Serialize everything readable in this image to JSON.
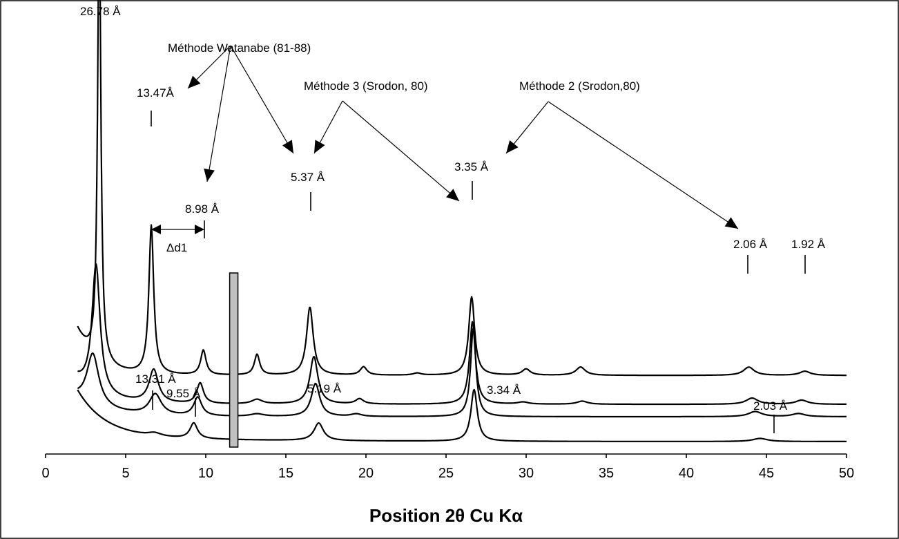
{
  "chart_data": {
    "type": "line",
    "xlabel": "Position 2θ Cu Kα",
    "xlim": [
      0,
      50
    ],
    "xticks": [
      0,
      5,
      10,
      15,
      20,
      25,
      30,
      35,
      40,
      45,
      50
    ],
    "grid": false,
    "series": [
      {
        "x_start": 2,
        "baseline": 0.32,
        "background": [
          {
            "height": 0.22,
            "decay": 1.2
          }
        ],
        "peaks": [
          {
            "x": 3.35,
            "height": 2.2,
            "width": 0.12
          },
          {
            "x": 6.6,
            "height": 0.72,
            "width": 0.18
          },
          {
            "x": 9.85,
            "height": 0.12,
            "width": 0.2
          },
          {
            "x": 13.2,
            "height": 0.1,
            "width": 0.2
          },
          {
            "x": 16.5,
            "height": 0.33,
            "width": 0.25
          },
          {
            "x": 19.85,
            "height": 0.04,
            "width": 0.25
          },
          {
            "x": 23.2,
            "height": 0.01,
            "width": 0.3
          },
          {
            "x": 26.6,
            "height": 0.38,
            "width": 0.22
          },
          {
            "x": 30.0,
            "height": 0.03,
            "width": 0.3
          },
          {
            "x": 33.4,
            "height": 0.04,
            "width": 0.35
          },
          {
            "x": 43.9,
            "height": 0.04,
            "width": 0.4
          },
          {
            "x": 47.4,
            "height": 0.02,
            "width": 0.4
          }
        ]
      },
      {
        "x_start": 2,
        "baseline": 0.18,
        "background": [
          {
            "height": 0.12,
            "decay": 1.6
          }
        ],
        "peaks": [
          {
            "x": 3.15,
            "height": 0.62,
            "width": 0.3
          },
          {
            "x": 6.75,
            "height": 0.16,
            "width": 0.35
          },
          {
            "x": 9.65,
            "height": 0.1,
            "width": 0.25
          },
          {
            "x": 13.2,
            "height": 0.022,
            "width": 0.4
          },
          {
            "x": 16.75,
            "height": 0.23,
            "width": 0.3
          },
          {
            "x": 19.6,
            "height": 0.025,
            "width": 0.3
          },
          {
            "x": 26.65,
            "height": 0.4,
            "width": 0.22
          },
          {
            "x": 29.8,
            "height": 0.01,
            "width": 0.4
          },
          {
            "x": 33.5,
            "height": 0.015,
            "width": 0.4
          },
          {
            "x": 44.1,
            "height": 0.03,
            "width": 0.45
          },
          {
            "x": 47.2,
            "height": 0.02,
            "width": 0.45
          }
        ]
      },
      {
        "x_start": 2,
        "baseline": 0.12,
        "background": [
          {
            "height": 0.09,
            "decay": 2.0
          }
        ],
        "peaks": [
          {
            "x": 2.95,
            "height": 0.25,
            "width": 0.45
          },
          {
            "x": 6.85,
            "height": 0.1,
            "width": 0.45
          },
          {
            "x": 9.5,
            "height": 0.09,
            "width": 0.3
          },
          {
            "x": 13.2,
            "height": 0.012,
            "width": 0.5
          },
          {
            "x": 16.85,
            "height": 0.16,
            "width": 0.32
          },
          {
            "x": 19.4,
            "height": 0.012,
            "width": 0.4
          },
          {
            "x": 26.7,
            "height": 0.43,
            "width": 0.2
          },
          {
            "x": 44.3,
            "height": 0.025,
            "width": 0.5
          },
          {
            "x": 47.0,
            "height": 0.015,
            "width": 0.5
          }
        ]
      },
      {
        "x_start": 2,
        "baseline": 0.0,
        "background": [
          {
            "height": 0.22,
            "decay": 1.7
          },
          {
            "height": 0.03,
            "decay": 8
          }
        ],
        "peaks": [
          {
            "x": 6.8,
            "height": 0.015,
            "width": 0.5
          },
          {
            "x": 9.25,
            "height": 0.075,
            "width": 0.28
          },
          {
            "x": 17.05,
            "height": 0.085,
            "width": 0.35
          },
          {
            "x": 26.75,
            "height": 0.25,
            "width": 0.24
          },
          {
            "x": 44.6,
            "height": 0.015,
            "width": 0.55
          }
        ]
      }
    ],
    "annotations": {
      "peaks_top": [
        "26.78 Å",
        "13.47Å",
        "8.98 Å",
        "5.37 Å",
        "3.35 Å",
        "2.06 Å",
        "1.92 Å"
      ],
      "peaks_bottom": [
        "13.31 Å",
        "9.55 Å",
        "5.19 Å",
        "3.34 Å",
        "2.03 Å"
      ],
      "delta": "Δd1",
      "methods": [
        "Méthode Watanabe (81-88)",
        "Méthode 3 (Srodon, 80)",
        "Méthode 2 (Srodon,80)"
      ],
      "band_x": 11.75
    }
  }
}
